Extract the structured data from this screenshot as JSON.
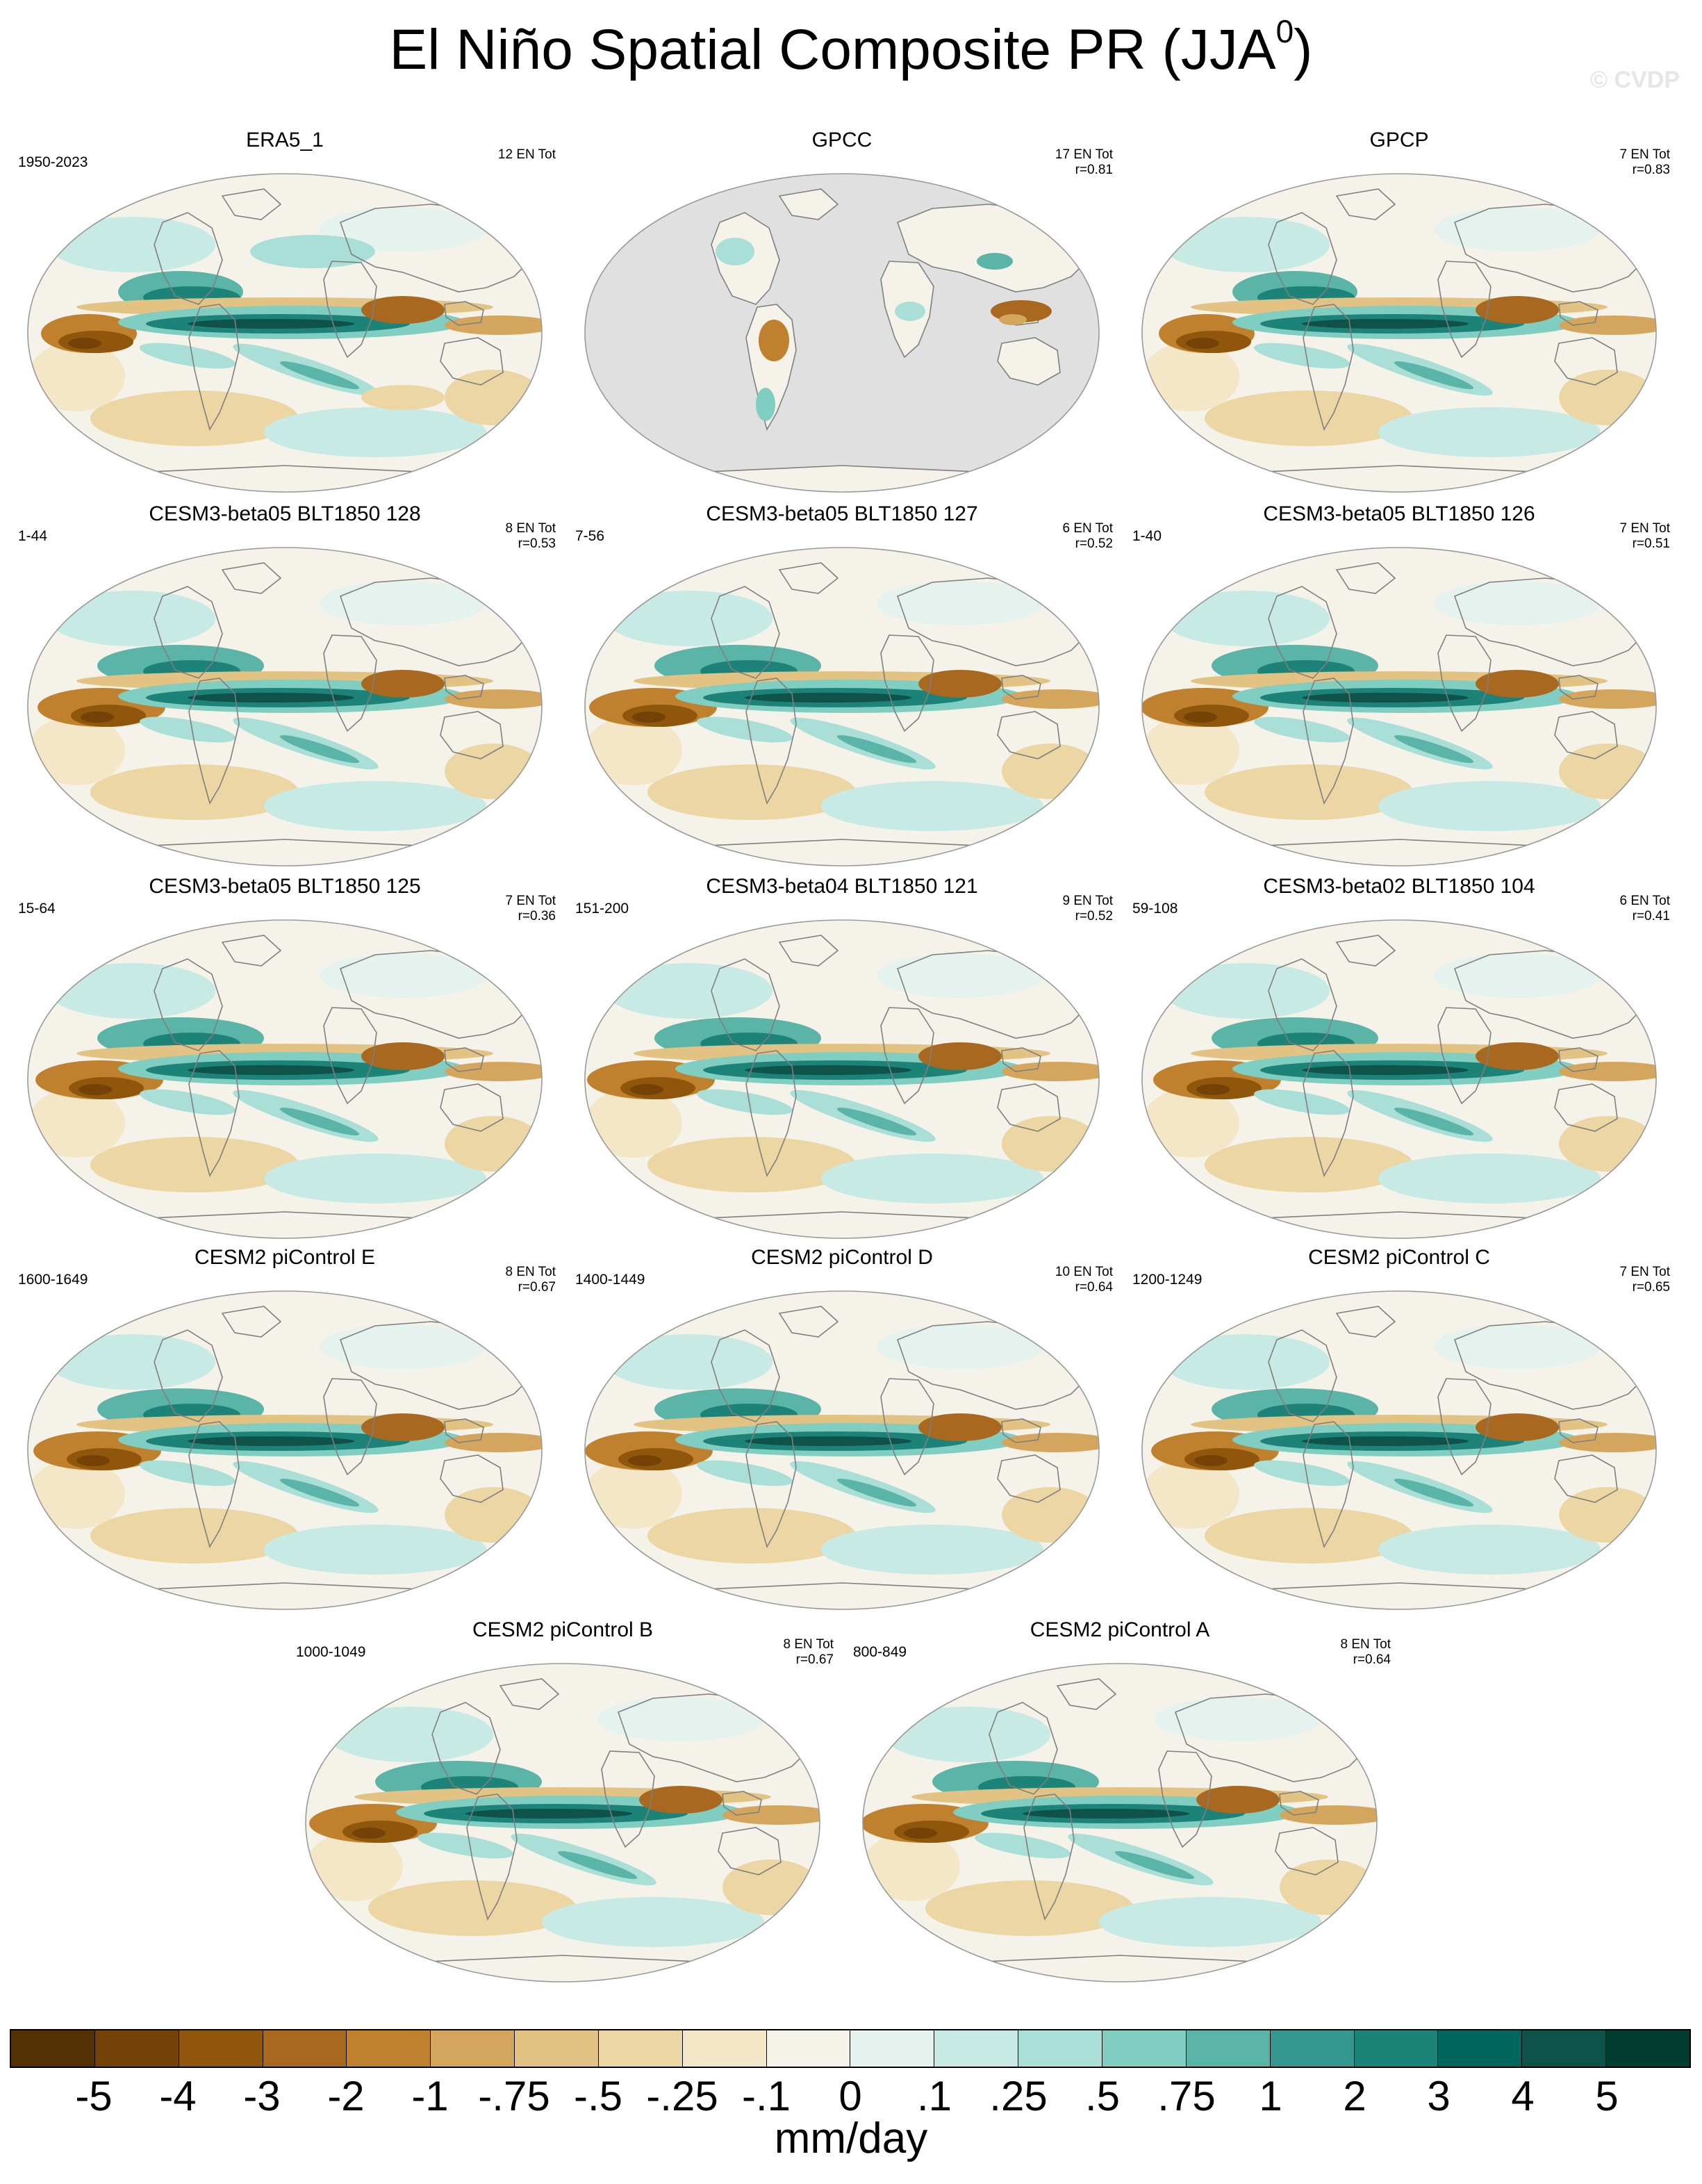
{
  "title": {
    "main": "El Niño Spatial Composite PR (JJA",
    "sup": "0",
    "close": ")"
  },
  "watermark": "© CVDP",
  "panels": [
    {
      "title": "ERA5_1",
      "years": "1950-2023",
      "events": "12 EN Tot",
      "r": "",
      "style": "era"
    },
    {
      "title": "GPCC",
      "years": "",
      "events": "17 EN Tot",
      "r": "r=0.81",
      "style": "landonly"
    },
    {
      "title": "GPCP",
      "years": "",
      "events": "7 EN Tot",
      "r": "r=0.83",
      "style": "obs"
    },
    {
      "title": "CESM3-beta05 BLT1850 128",
      "years": "1-44",
      "events": "8 EN Tot",
      "r": "r=0.53",
      "style": "model"
    },
    {
      "title": "CESM3-beta05 BLT1850 127",
      "years": "7-56",
      "events": "6 EN Tot",
      "r": "r=0.52",
      "style": "model"
    },
    {
      "title": "CESM3-beta05 BLT1850 126",
      "years": "1-40",
      "events": "7 EN Tot",
      "r": "r=0.51",
      "style": "model"
    },
    {
      "title": "CESM3-beta05 BLT1850 125",
      "years": "15-64",
      "events": "7 EN Tot",
      "r": "r=0.36",
      "style": "model"
    },
    {
      "title": "CESM3-beta04 BLT1850 121",
      "years": "151-200",
      "events": "9 EN Tot",
      "r": "r=0.52",
      "style": "model"
    },
    {
      "title": "CESM3-beta02 BLT1850 104",
      "years": "59-108",
      "events": "6 EN Tot",
      "r": "r=0.41",
      "style": "model"
    },
    {
      "title": "CESM2 piControl E",
      "years": "1600-1649",
      "events": "8 EN Tot",
      "r": "r=0.67",
      "style": "model"
    },
    {
      "title": "CESM2 piControl D",
      "years": "1400-1449",
      "events": "10 EN Tot",
      "r": "r=0.64",
      "style": "model"
    },
    {
      "title": "CESM2 piControl C",
      "years": "1200-1249",
      "events": "7 EN Tot",
      "r": "r=0.65",
      "style": "model"
    },
    {
      "title": "CESM2 piControl B",
      "years": "1000-1049",
      "events": "8 EN Tot",
      "r": "r=0.67",
      "style": "model"
    },
    {
      "title": "CESM2 piControl A",
      "years": "800-849",
      "events": "8 EN Tot",
      "r": "r=0.64",
      "style": "model"
    }
  ],
  "colorbar": {
    "labels": [
      "-5",
      "-4",
      "-3",
      "-2",
      "-1",
      "-.75",
      "-.5",
      "-.25",
      "-.1",
      "0",
      ".1",
      ".25",
      ".5",
      ".75",
      "1",
      "2",
      "3",
      "4",
      "5"
    ],
    "colors": [
      "#543005",
      "#744206",
      "#8f560c",
      "#a8681f",
      "#bf812d",
      "#d4a55c",
      "#e2c384",
      "#ecd6a4",
      "#f4e7c7",
      "#f5f2ea",
      "#e6f2ee",
      "#c7eae5",
      "#a9dfd7",
      "#80cdc1",
      "#5ab4a8",
      "#35978f",
      "#1d8278",
      "#01665e",
      "#0e5249",
      "#003c30"
    ],
    "units": "mm/day"
  }
}
